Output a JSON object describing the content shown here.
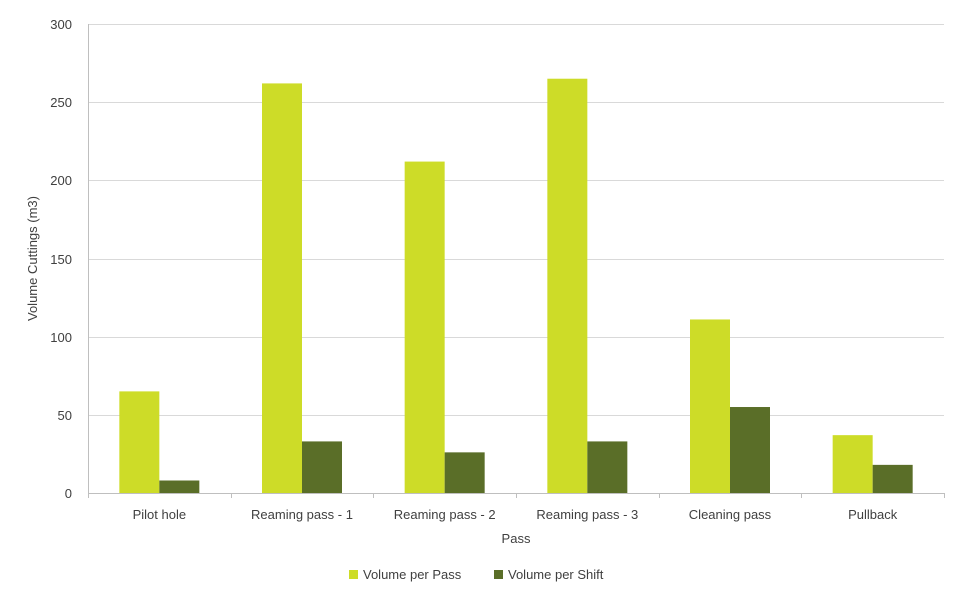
{
  "chart_data": {
    "type": "bar",
    "categories": [
      "Pilot hole",
      "Reaming pass - 1",
      "Reaming pass - 2",
      "Reaming pass - 3",
      "Cleaning pass",
      "Pullback"
    ],
    "series": [
      {
        "name": "Volume per Pass",
        "values": [
          65,
          262,
          212,
          265,
          111,
          37
        ],
        "color": "#cddc28"
      },
      {
        "name": "Volume per Shift",
        "values": [
          8,
          33,
          26,
          33,
          55,
          18
        ],
        "color": "#5a6e28"
      }
    ],
    "xlabel": "Pass",
    "ylabel": "Volume Cuttings (m3)",
    "ylim": [
      0,
      300
    ],
    "yticks": [
      0,
      50,
      100,
      150,
      200,
      250,
      300
    ],
    "grid": true,
    "legend_position": "bottom"
  }
}
